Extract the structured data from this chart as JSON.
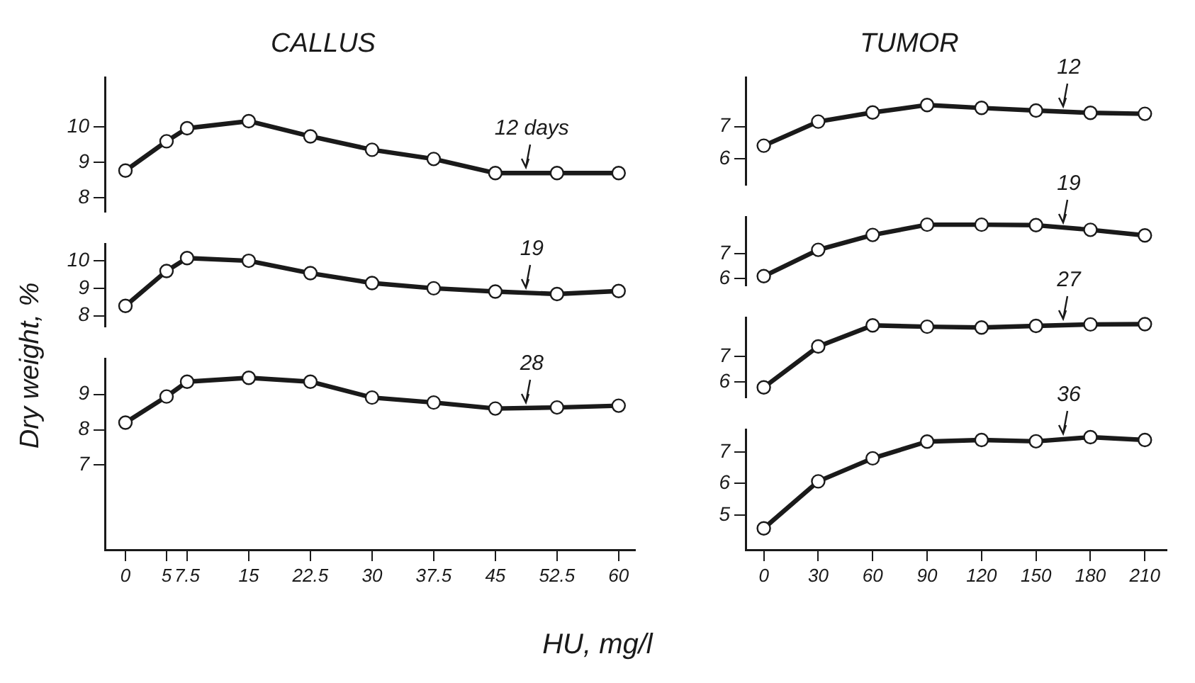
{
  "chart_data": [
    {
      "type": "line",
      "title": "CALLUS",
      "x": [
        0,
        5,
        7.5,
        15,
        22.5,
        30,
        37.5,
        45,
        52.5,
        60
      ],
      "ylim": [
        7.6,
        11.4
      ],
      "yticks": [
        8,
        9,
        10
      ],
      "tick_labels": "y",
      "grid": false,
      "legend": false,
      "marker": "circle",
      "series": [
        {
          "name": "12 days",
          "color": "#1a1a1a",
          "values": [
            8.77,
            9.6,
            9.97,
            10.17,
            9.74,
            9.36,
            9.1,
            8.7,
            8.7,
            8.7
          ]
        }
      ]
    },
    {
      "type": "line",
      "ylabel": "Dry weight, %",
      "x": [
        0,
        5,
        7.5,
        15,
        22.5,
        30,
        37.5,
        45,
        52.5,
        60
      ],
      "ylim": [
        7.6,
        10.6
      ],
      "yticks": [
        8,
        9,
        10
      ],
      "tick_labels": "y",
      "grid": false,
      "legend": false,
      "marker": "circle",
      "series": [
        {
          "name": "19",
          "color": "#1a1a1a",
          "values": [
            8.36,
            9.63,
            10.1,
            10.0,
            9.55,
            9.19,
            9.0,
            8.88,
            8.79,
            8.9
          ]
        }
      ]
    },
    {
      "type": "line",
      "x": [
        0,
        5,
        7.5,
        15,
        22.5,
        30,
        37.5,
        45,
        52.5,
        60
      ],
      "xlim": [
        -2.5,
        62
      ],
      "xticks": [
        0,
        5,
        7.5,
        15,
        22.5,
        30,
        37.5,
        45,
        52.5,
        60
      ],
      "ylim": [
        4.6,
        10.0
      ],
      "yticks": [
        7,
        8,
        9
      ],
      "grid": false,
      "legend": false,
      "marker": "circle",
      "series": [
        {
          "name": "28",
          "color": "#1a1a1a",
          "values": [
            8.2,
            8.94,
            9.36,
            9.47,
            9.36,
            8.91,
            8.77,
            8.6,
            8.63,
            8.68
          ]
        }
      ]
    },
    {
      "type": "line",
      "title": "TUMOR",
      "x": [
        0,
        30,
        60,
        90,
        120,
        150,
        180,
        210
      ],
      "ylim": [
        5.2,
        8.5
      ],
      "yticks": [
        6,
        7
      ],
      "tick_labels": "y",
      "grid": false,
      "legend": false,
      "marker": "circle",
      "series": [
        {
          "name": "12",
          "color": "#1a1a1a",
          "values": [
            6.41,
            7.15,
            7.43,
            7.66,
            7.57,
            7.49,
            7.42,
            7.39
          ]
        }
      ]
    },
    {
      "type": "line",
      "x": [
        0,
        30,
        60,
        90,
        120,
        150,
        180,
        210
      ],
      "ylim": [
        5.7,
        8.5
      ],
      "yticks": [
        6,
        7
      ],
      "tick_labels": "y",
      "grid": false,
      "legend": false,
      "marker": "circle",
      "series": [
        {
          "name": "19",
          "color": "#1a1a1a",
          "values": [
            6.09,
            7.17,
            7.78,
            8.2,
            8.2,
            8.18,
            7.99,
            7.76
          ]
        }
      ]
    },
    {
      "type": "line",
      "x": [
        0,
        30,
        60,
        90,
        120,
        150,
        180,
        210
      ],
      "ylim": [
        5.4,
        8.5
      ],
      "yticks": [
        6,
        7
      ],
      "tick_labels": "y",
      "grid": false,
      "legend": false,
      "marker": "circle",
      "series": [
        {
          "name": "27",
          "color": "#1a1a1a",
          "values": [
            5.8,
            7.39,
            8.21,
            8.16,
            8.13,
            8.19,
            8.25,
            8.26
          ]
        }
      ]
    },
    {
      "type": "line",
      "xlabel": "HU, mg/l",
      "x": [
        0,
        30,
        60,
        90,
        120,
        150,
        180,
        210
      ],
      "xlim": [
        -10,
        222
      ],
      "xticks": [
        0,
        30,
        60,
        90,
        120,
        150,
        180,
        210
      ],
      "ylim": [
        3.9,
        7.7
      ],
      "yticks": [
        5,
        6,
        7
      ],
      "grid": false,
      "legend": false,
      "marker": "circle",
      "series": [
        {
          "name": "36",
          "color": "#1a1a1a",
          "values": [
            4.58,
            6.07,
            6.8,
            7.33,
            7.38,
            7.34,
            7.47,
            7.38
          ]
        }
      ]
    }
  ]
}
